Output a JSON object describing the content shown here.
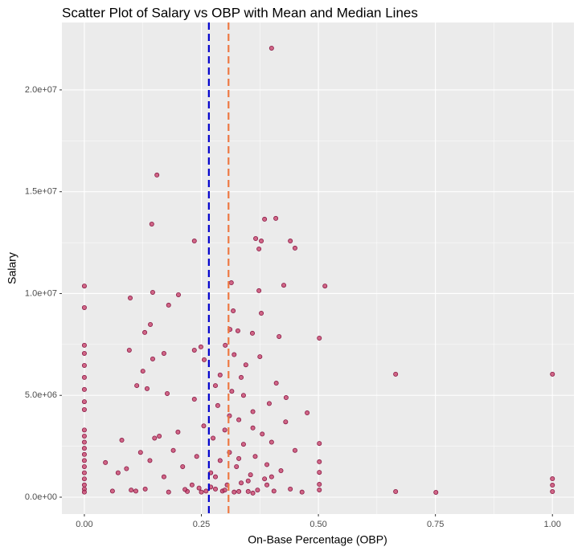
{
  "chart_data": {
    "type": "scatter",
    "title": "Scatter Plot of Salary vs OBP with Mean and Median Lines",
    "x_label": "On-Base Percentage (OBP)",
    "y_label": "Salary",
    "color": "#c8436d",
    "edge_color": "#8b1a45",
    "grid": true,
    "xlim": [
      -0.048,
      1.046
    ],
    "ylim": [
      -828000,
      23310000
    ],
    "xticks": [
      {
        "value": 0,
        "label": "0.00"
      },
      {
        "value": 0.25,
        "label": "0.25"
      },
      {
        "value": 0.5,
        "label": "0.50"
      },
      {
        "value": 0.75,
        "label": "0.75"
      },
      {
        "value": 1,
        "label": "1.00"
      }
    ],
    "yticks": [
      {
        "value": 0,
        "label": "0.0e+00"
      },
      {
        "value": 5000000,
        "label": "5.0e+06"
      },
      {
        "value": 10000000,
        "label": "1.0e+07"
      },
      {
        "value": 15000000,
        "label": "1.5e+07"
      },
      {
        "value": 20000000,
        "label": "2.0e+07"
      }
    ],
    "mean_line": {
      "x": 0.266,
      "color": "#0000cd"
    },
    "median_line": {
      "x": 0.308,
      "color": "#ee7942"
    },
    "x": [
      0.4,
      0.155,
      0.144,
      0.235,
      0.409,
      0.385,
      0.378,
      0.366,
      0.373,
      0.44,
      0.45,
      0,
      0,
      0.514,
      0.426,
      0.146,
      0.098,
      0.201,
      0.18,
      0.314,
      0.318,
      0.373,
      0.378,
      0.141,
      0.129,
      0.311,
      0.328,
      0.359,
      0.416,
      0.502,
      0,
      0,
      0,
      0,
      0,
      0,
      0,
      0.096,
      0.146,
      0.17,
      0.125,
      0.235,
      0.249,
      0.256,
      0.301,
      0.665,
      1,
      0.112,
      0.134,
      0.177,
      0.235,
      0.28,
      0.335,
      0.431,
      0.476,
      0.502,
      0.502,
      0.502,
      0.502,
      0.502,
      1,
      1,
      1,
      0.665,
      0.751,
      0,
      0,
      0,
      0,
      0,
      0,
      0,
      0,
      0,
      0,
      0,
      0,
      0.045,
      0.06,
      0.072,
      0.08,
      0.09,
      0.1,
      0.11,
      0.12,
      0.13,
      0.14,
      0.15,
      0.16,
      0.17,
      0.18,
      0.19,
      0.2,
      0.21,
      0.22,
      0.23,
      0.24,
      0.25,
      0.255,
      0.26,
      0.27,
      0.275,
      0.28,
      0.285,
      0.29,
      0.295,
      0.3,
      0.305,
      0.31,
      0.315,
      0.32,
      0.325,
      0.33,
      0.335,
      0.34,
      0.345,
      0.35,
      0.355,
      0.36,
      0.365,
      0.37,
      0.375,
      0.38,
      0.385,
      0.39,
      0.395,
      0.4,
      0.405,
      0.41,
      0.42,
      0.43,
      0.44,
      0.45,
      0.465,
      0.32,
      0.29,
      0.34,
      0.31,
      0.36,
      0.33,
      0.27,
      0.35,
      0.39,
      0.3,
      0.28,
      0.36,
      0.245,
      0.215,
      0.33,
      0.4
    ],
    "values": [
      22050000,
      15820000,
      13410000,
      12580000,
      13690000,
      13650000,
      12580000,
      12700000,
      12190000,
      12580000,
      12230000,
      10370000,
      9310000,
      10370000,
      10410000,
      10060000,
      9780000,
      9940000,
      9430000,
      10530000,
      9150000,
      10140000,
      9030000,
      8480000,
      8090000,
      8240000,
      8170000,
      8050000,
      7890000,
      7810000,
      7460000,
      7060000,
      6470000,
      5880000,
      5290000,
      4690000,
      4300000,
      7220000,
      6790000,
      7060000,
      6190000,
      7220000,
      7380000,
      6750000,
      7460000,
      6040000,
      6040000,
      5480000,
      5330000,
      5090000,
      4810000,
      5480000,
      5880000,
      4890000,
      4140000,
      2640000,
      1740000,
      1220000,
      630000,
      355000,
      907000,
      590000,
      276000,
      276000,
      237000,
      3300000,
      3000000,
      2700000,
      2400000,
      2100000,
      1800000,
      1500000,
      1200000,
      900000,
      600000,
      400000,
      250000,
      1700000,
      300000,
      1200000,
      2800000,
      1400000,
      350000,
      300000,
      2200000,
      400000,
      1800000,
      2900000,
      3000000,
      1000000,
      250000,
      2300000,
      3200000,
      1500000,
      280000,
      600000,
      2000000,
      250000,
      3500000,
      300000,
      1200000,
      2900000,
      400000,
      4500000,
      1800000,
      300000,
      3300000,
      600000,
      2200000,
      5200000,
      250000,
      1500000,
      3800000,
      700000,
      2600000,
      6500000,
      280000,
      1100000,
      4200000,
      2000000,
      350000,
      6900000,
      3100000,
      900000,
      1600000,
      4600000,
      2700000,
      300000,
      5600000,
      1300000,
      3700000,
      400000,
      2300000,
      250000,
      7000000,
      6000000,
      5000000,
      4000000,
      3400000,
      1900000,
      500000,
      800000,
      600000,
      350000,
      1000000,
      200000,
      450000,
      380000,
      280000,
      1000000
    ]
  }
}
